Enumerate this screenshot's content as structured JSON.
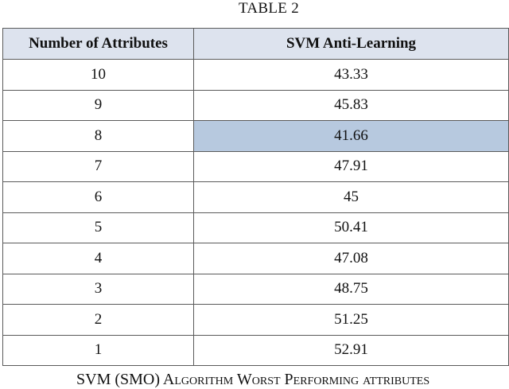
{
  "table_title": "TABLE 2",
  "headers": {
    "attributes": "Number of Attributes",
    "svm": "SVM Anti-Learning"
  },
  "rows": [
    {
      "attributes": "10",
      "svm": "43.33",
      "highlighted": false
    },
    {
      "attributes": "9",
      "svm": "45.83",
      "highlighted": false
    },
    {
      "attributes": "8",
      "svm": "41.66",
      "highlighted": true
    },
    {
      "attributes": "7",
      "svm": "47.91",
      "highlighted": false
    },
    {
      "attributes": "6",
      "svm": "45",
      "highlighted": false
    },
    {
      "attributes": "5",
      "svm": "50.41",
      "highlighted": false
    },
    {
      "attributes": "4",
      "svm": "47.08",
      "highlighted": false
    },
    {
      "attributes": "3",
      "svm": "48.75",
      "highlighted": false
    },
    {
      "attributes": "2",
      "svm": "51.25",
      "highlighted": false
    },
    {
      "attributes": "1",
      "svm": "52.91",
      "highlighted": false
    }
  ],
  "caption": "SVM (SMO) Algorithm Worst Performing attributes",
  "colors": {
    "header_bg": "#dde3ee",
    "highlight_bg": "#b7c9df",
    "border": "#5a5a5a"
  }
}
